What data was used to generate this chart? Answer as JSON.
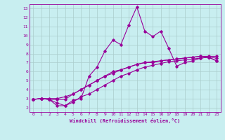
{
  "bg_color": "#c8eef0",
  "line_color": "#990099",
  "grid_color": "#aacccc",
  "xlabel": "Windchill (Refroidissement éolien,°C)",
  "ylim": [
    1.5,
    13.5
  ],
  "xlim": [
    -0.5,
    23.5
  ],
  "yticks": [
    2,
    3,
    4,
    5,
    6,
    7,
    8,
    9,
    10,
    11,
    12,
    13
  ],
  "xticks": [
    0,
    1,
    2,
    3,
    4,
    5,
    6,
    7,
    8,
    9,
    10,
    11,
    12,
    13,
    14,
    15,
    16,
    17,
    18,
    19,
    20,
    21,
    22,
    23
  ],
  "line1_x": [
    0,
    1,
    2,
    3,
    4,
    5,
    6,
    7,
    8,
    9,
    10,
    11,
    12,
    13,
    14,
    15,
    16,
    17,
    18,
    19,
    20,
    21,
    22,
    23
  ],
  "line1_y": [
    2.9,
    3.0,
    2.9,
    2.2,
    2.2,
    2.8,
    3.0,
    5.5,
    6.5,
    8.3,
    9.5,
    9.0,
    11.2,
    13.2,
    10.5,
    9.9,
    10.5,
    8.6,
    6.6,
    7.0,
    7.2,
    7.5,
    7.6,
    7.2
  ],
  "line2_x": [
    0,
    1,
    2,
    3,
    4,
    5,
    6,
    7,
    8,
    9,
    10,
    11,
    12,
    13,
    14,
    15,
    16,
    17,
    18,
    19,
    20,
    21,
    22,
    23
  ],
  "line2_y": [
    2.9,
    3.0,
    2.9,
    2.9,
    2.9,
    3.5,
    4.0,
    4.5,
    5.0,
    5.5,
    6.0,
    6.2,
    6.5,
    6.8,
    7.0,
    7.1,
    7.2,
    7.3,
    7.4,
    7.5,
    7.6,
    7.7,
    7.7,
    7.7
  ],
  "line3_x": [
    0,
    1,
    2,
    3,
    4,
    5,
    6,
    7,
    8,
    9,
    10,
    11,
    12,
    13,
    14,
    15,
    16,
    17,
    18,
    19,
    20,
    21,
    22,
    23
  ],
  "line3_y": [
    2.9,
    3.0,
    2.9,
    2.5,
    2.2,
    2.6,
    3.2,
    3.5,
    4.0,
    4.5,
    5.0,
    5.5,
    5.8,
    6.2,
    6.5,
    6.7,
    6.9,
    7.1,
    7.2,
    7.3,
    7.4,
    7.5,
    7.6,
    7.2
  ],
  "line4_x": [
    0,
    1,
    2,
    3,
    4,
    5,
    6,
    7,
    8,
    9,
    10,
    11,
    12,
    13,
    14,
    15,
    16,
    17,
    18,
    19,
    20,
    21,
    22,
    23
  ],
  "line4_y": [
    2.9,
    3.0,
    3.0,
    3.0,
    3.2,
    3.5,
    4.0,
    4.5,
    5.0,
    5.5,
    5.8,
    6.2,
    6.5,
    6.8,
    7.0,
    7.0,
    7.2,
    7.3,
    7.4,
    7.5,
    7.6,
    7.7,
    7.6,
    7.5
  ],
  "figsize": [
    3.2,
    2.0
  ],
  "dpi": 100
}
